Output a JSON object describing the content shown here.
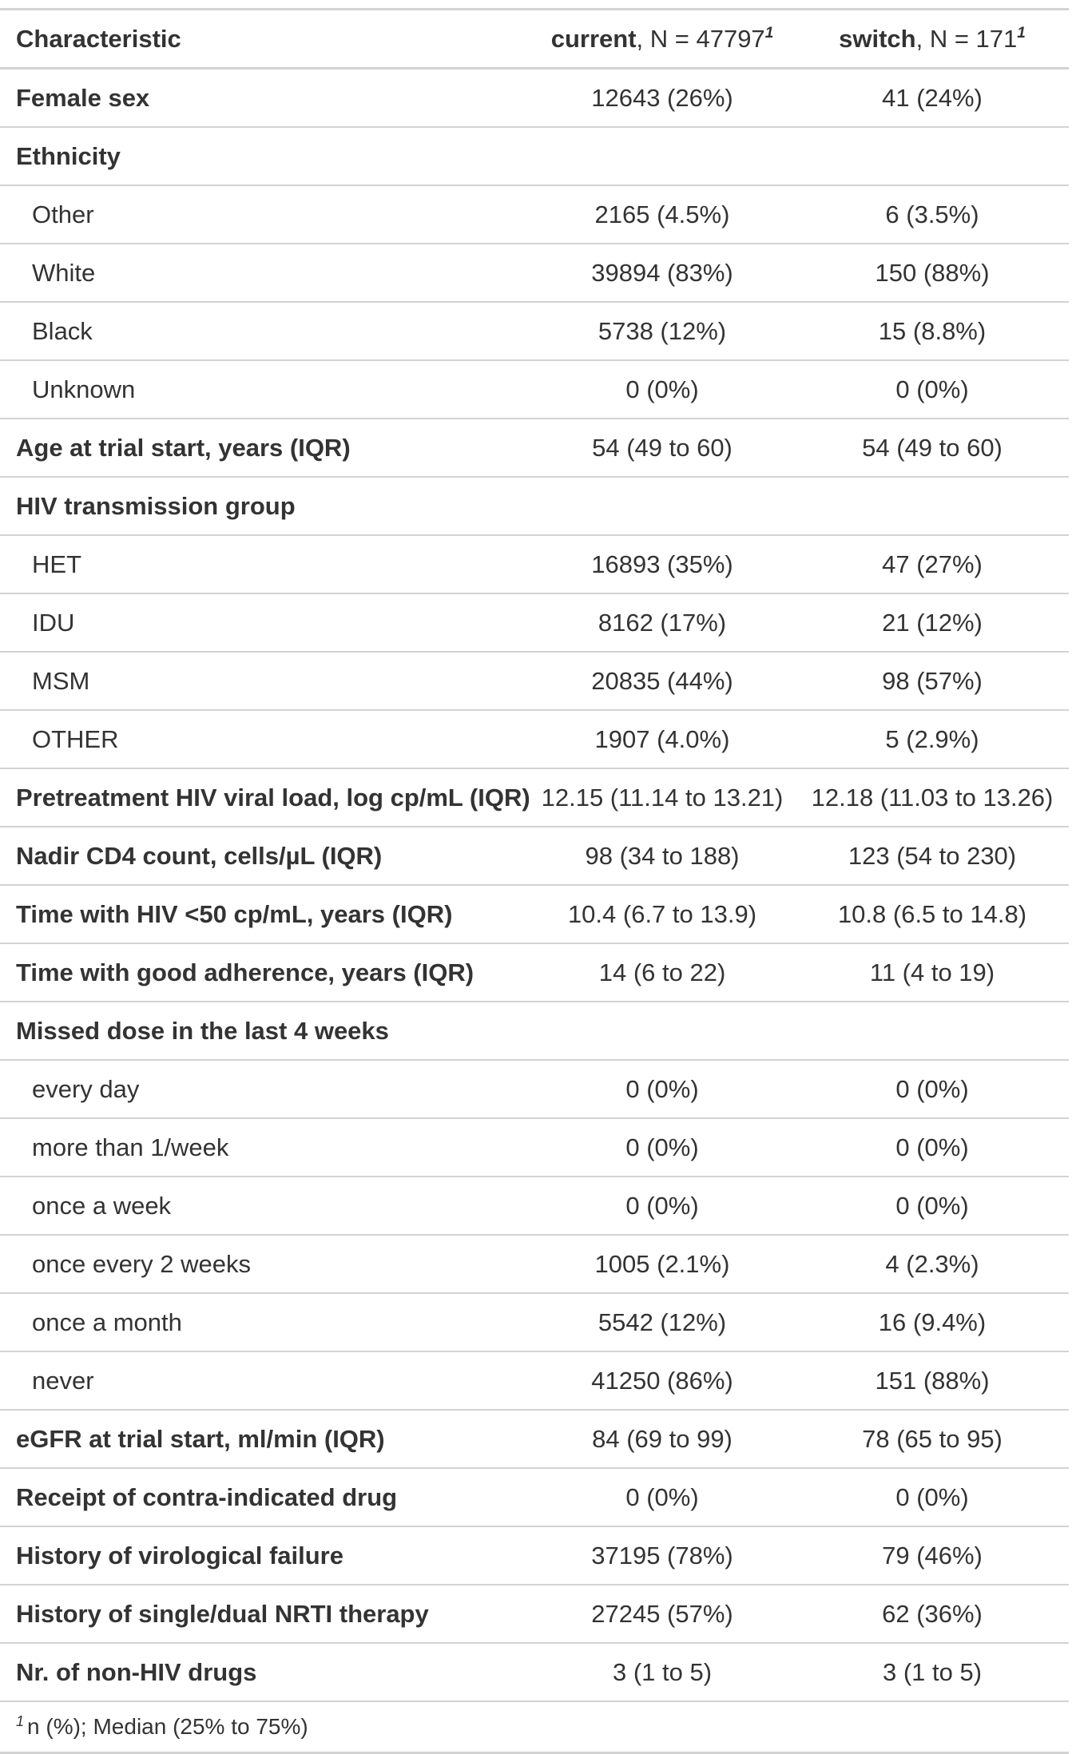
{
  "header": {
    "characteristic": "Characteristic",
    "col_current_name": "current",
    "col_current_n": ", N = 47797",
    "col_switch_name": "switch",
    "col_switch_n": ", N = 171",
    "footnote_mark": "1"
  },
  "rows": [
    {
      "label": "Female sex",
      "type": "group",
      "current": "12643 (26%)",
      "switch": "41 (24%)"
    },
    {
      "label": "Ethnicity",
      "type": "group",
      "current": "",
      "switch": ""
    },
    {
      "label": "Other",
      "type": "level",
      "current": "2165 (4.5%)",
      "switch": "6 (3.5%)"
    },
    {
      "label": "White",
      "type": "level",
      "current": "39894 (83%)",
      "switch": "150 (88%)"
    },
    {
      "label": "Black",
      "type": "level",
      "current": "5738 (12%)",
      "switch": "15 (8.8%)"
    },
    {
      "label": "Unknown",
      "type": "level",
      "current": "0 (0%)",
      "switch": "0 (0%)"
    },
    {
      "label": "Age at trial start, years (IQR)",
      "type": "group",
      "current": "54 (49 to 60)",
      "switch": "54 (49 to 60)"
    },
    {
      "label": "HIV transmission group",
      "type": "group",
      "current": "",
      "switch": ""
    },
    {
      "label": "HET",
      "type": "level",
      "current": "16893 (35%)",
      "switch": "47 (27%)"
    },
    {
      "label": "IDU",
      "type": "level",
      "current": "8162 (17%)",
      "switch": "21 (12%)"
    },
    {
      "label": "MSM",
      "type": "level",
      "current": "20835 (44%)",
      "switch": "98 (57%)"
    },
    {
      "label": "OTHER",
      "type": "level",
      "current": "1907 (4.0%)",
      "switch": "5 (2.9%)"
    },
    {
      "label": "Pretreatment HIV viral load, log cp/mL (IQR)",
      "type": "group",
      "current": "12.15 (11.14 to 13.21)",
      "switch": "12.18 (11.03 to 13.26)"
    },
    {
      "label": "Nadir CD4 count, cells/µL (IQR)",
      "type": "group",
      "current": "98 (34 to 188)",
      "switch": "123 (54 to 230)"
    },
    {
      "label": "Time with HIV <50 cp/mL, years (IQR)",
      "type": "group",
      "current": "10.4 (6.7 to 13.9)",
      "switch": "10.8 (6.5 to 14.8)"
    },
    {
      "label": "Time with good adherence, years (IQR)",
      "type": "group",
      "current": "14 (6 to 22)",
      "switch": "11 (4 to 19)"
    },
    {
      "label": "Missed dose in the last 4 weeks",
      "type": "group",
      "current": "",
      "switch": ""
    },
    {
      "label": "every day",
      "type": "level",
      "current": "0 (0%)",
      "switch": "0 (0%)"
    },
    {
      "label": "more than 1/week",
      "type": "level",
      "current": "0 (0%)",
      "switch": "0 (0%)"
    },
    {
      "label": "once a week",
      "type": "level",
      "current": "0 (0%)",
      "switch": "0 (0%)"
    },
    {
      "label": "once every 2 weeks",
      "type": "level",
      "current": "1005 (2.1%)",
      "switch": "4 (2.3%)"
    },
    {
      "label": "once a month",
      "type": "level",
      "current": "5542 (12%)",
      "switch": "16 (9.4%)"
    },
    {
      "label": "never",
      "type": "level",
      "current": "41250 (86%)",
      "switch": "151 (88%)"
    },
    {
      "label": "eGFR at trial start, ml/min (IQR)",
      "type": "group",
      "current": "84 (69 to 99)",
      "switch": "78 (65 to 95)"
    },
    {
      "label": "Receipt of contra-indicated drug",
      "type": "group",
      "current": "0 (0%)",
      "switch": "0 (0%)"
    },
    {
      "label": "History of virological failure",
      "type": "group",
      "current": "37195 (78%)",
      "switch": "79 (46%)"
    },
    {
      "label": "History of single/dual NRTI therapy",
      "type": "group",
      "current": "27245 (57%)",
      "switch": "62 (36%)"
    },
    {
      "label": "Nr. of non-HIV drugs",
      "type": "group",
      "current": "3 (1 to 5)",
      "switch": "3 (1 to 5)"
    }
  ],
  "footnote": {
    "mark": "1",
    "text": "n (%); Median (25% to 75%)"
  }
}
